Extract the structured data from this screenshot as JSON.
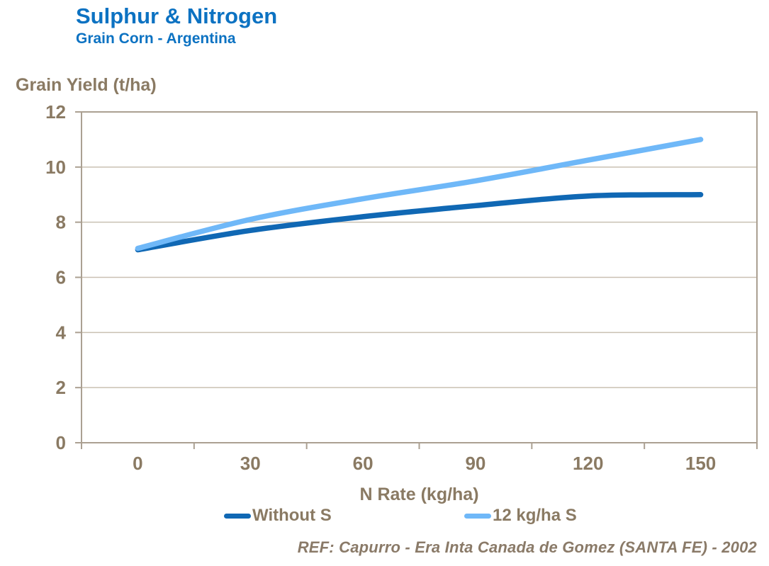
{
  "header": {
    "title": "Sulphur & Nitrogen",
    "subtitle": "Grain Corn - Argentina"
  },
  "chart_data": {
    "type": "line",
    "title": "Sulphur & Nitrogen",
    "subtitle": "Grain Corn - Argentina",
    "ylabel": "Grain Yield (t/ha)",
    "xlabel": "N Rate (kg/ha)",
    "categories": [
      "0",
      "30",
      "60",
      "90",
      "120",
      "150"
    ],
    "y_ticks": [
      0,
      2,
      4,
      6,
      8,
      10,
      12
    ],
    "ylim": [
      0,
      12
    ],
    "grid": "horizontal",
    "legend_position": "bottom",
    "series": [
      {
        "name": "Without S",
        "color": "#1068B4",
        "values": [
          7.0,
          7.7,
          8.2,
          8.6,
          8.95,
          9.0
        ]
      },
      {
        "name": "12 kg/ha S",
        "color": "#6FB8F8",
        "values": [
          7.05,
          8.1,
          8.85,
          9.5,
          10.25,
          11.0
        ]
      }
    ]
  },
  "footer": {
    "reference": "REF: Capurro -  Era Inta Canada de Gomez (SANTA  FE) - 2002"
  },
  "colors": {
    "title_blue": "#0C72C2",
    "axis_text": "#8A7A63",
    "grid": "#C9C0B2",
    "axis_line": "#ABA092"
  }
}
